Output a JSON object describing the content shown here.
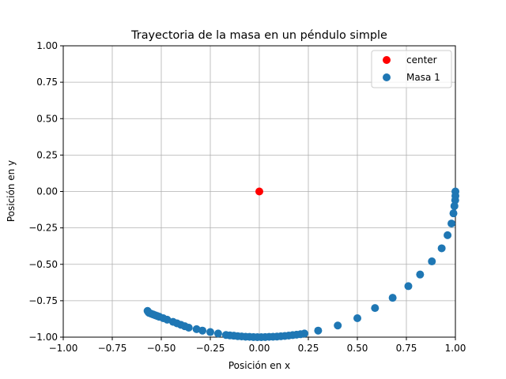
{
  "chart_data": {
    "type": "scatter",
    "title": "Trayectoria de la masa en un péndulo simple",
    "xlabel": "Posición en x",
    "ylabel": "Posición en y",
    "xlim": [
      -1.0,
      1.0
    ],
    "ylim": [
      -1.0,
      1.0
    ],
    "xticks": [
      -1.0,
      -0.75,
      -0.5,
      -0.25,
      0.0,
      0.25,
      0.5,
      0.75,
      1.0
    ],
    "yticks": [
      -1.0,
      -0.75,
      -0.5,
      -0.25,
      0.0,
      0.25,
      0.5,
      0.75,
      1.0
    ],
    "xtick_labels": [
      "−1.00",
      "−0.75",
      "−0.50",
      "−0.25",
      "0.00",
      "0.25",
      "0.50",
      "0.75",
      "1.00"
    ],
    "ytick_labels": [
      "−1.00",
      "−0.75",
      "−0.50",
      "−0.25",
      "0.00",
      "0.25",
      "0.50",
      "0.75",
      "1.00"
    ],
    "grid": true,
    "legend_position": "top-right",
    "series": [
      {
        "name": "center",
        "color": "#ff0000",
        "x": [
          0.0
        ],
        "y": [
          0.0
        ]
      },
      {
        "name": "Masa 1",
        "color": "#1f77b4",
        "x": [
          1.0,
          1.0,
          0.999,
          0.995,
          0.99,
          0.98,
          0.96,
          0.93,
          0.88,
          0.82,
          0.76,
          0.68,
          0.59,
          0.5,
          0.4,
          0.3,
          0.23,
          0.21,
          0.19,
          0.17,
          0.15,
          0.13,
          0.11,
          0.09,
          0.07,
          0.05,
          0.03,
          0.01,
          -0.01,
          -0.03,
          -0.05,
          -0.07,
          -0.09,
          -0.11,
          -0.13,
          -0.15,
          -0.17,
          -0.21,
          -0.25,
          -0.29,
          -0.32,
          -0.36,
          -0.38,
          -0.4,
          -0.42,
          -0.44,
          -0.47,
          -0.49,
          -0.51,
          -0.52,
          -0.53,
          -0.54,
          -0.55,
          -0.56,
          -0.565,
          -0.57
        ],
        "y": [
          0.0,
          -0.03,
          -0.06,
          -0.1,
          -0.15,
          -0.22,
          -0.3,
          -0.39,
          -0.48,
          -0.57,
          -0.65,
          -0.73,
          -0.8,
          -0.87,
          -0.92,
          -0.955,
          -0.975,
          -0.98,
          -0.983,
          -0.986,
          -0.989,
          -0.992,
          -0.994,
          -0.996,
          -0.997,
          -0.998,
          -0.999,
          -1.0,
          -1.0,
          -0.999,
          -0.998,
          -0.997,
          -0.995,
          -0.993,
          -0.99,
          -0.988,
          -0.985,
          -0.975,
          -0.965,
          -0.955,
          -0.945,
          -0.935,
          -0.925,
          -0.915,
          -0.905,
          -0.895,
          -0.88,
          -0.87,
          -0.86,
          -0.855,
          -0.85,
          -0.845,
          -0.84,
          -0.835,
          -0.83,
          -0.82
        ]
      }
    ]
  }
}
